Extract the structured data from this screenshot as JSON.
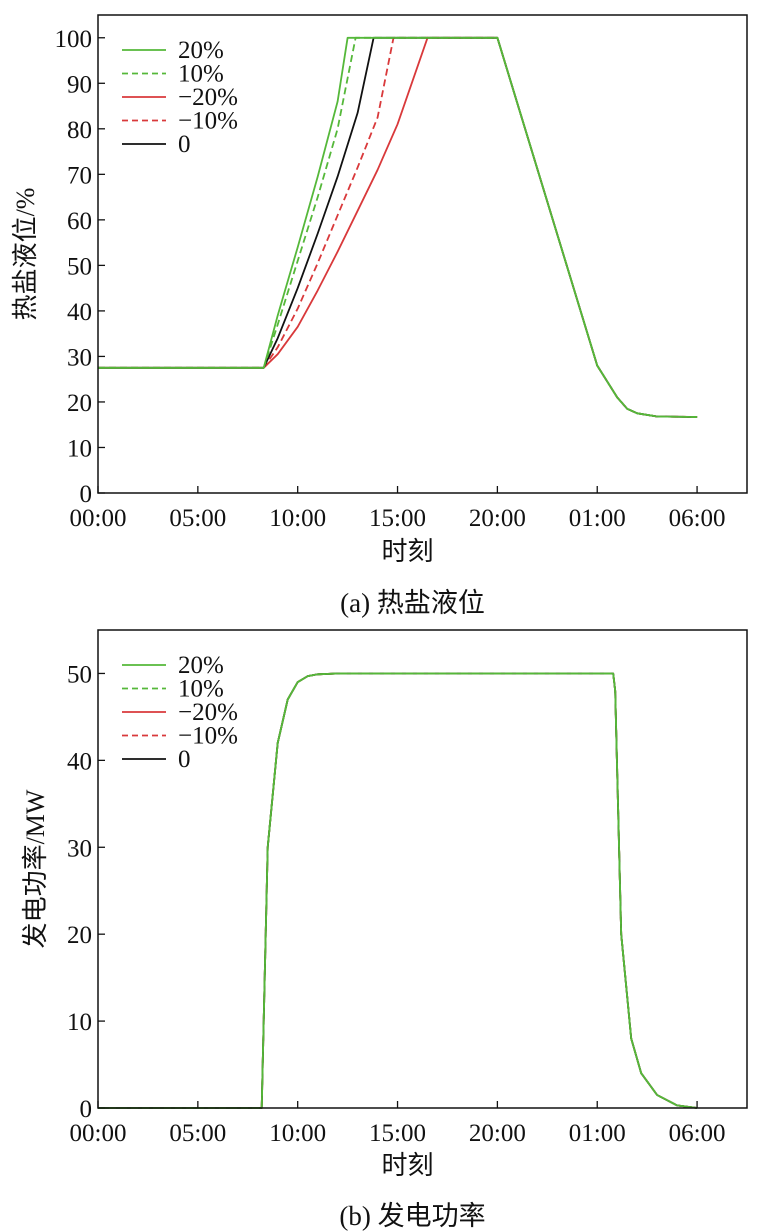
{
  "colors": {
    "green": "#55b83a",
    "red": "#d9393b",
    "black": "#111111",
    "axis": "#111111"
  },
  "legend": [
    {
      "label": "20%",
      "color": "green",
      "dash": false
    },
    {
      "label": "10%",
      "color": "green",
      "dash": true
    },
    {
      "label": "−20%",
      "color": "red",
      "dash": false
    },
    {
      "label": "−10%",
      "color": "red",
      "dash": true
    },
    {
      "label": "0",
      "color": "black",
      "dash": false
    }
  ],
  "chart_data": [
    {
      "type": "line",
      "caption": "(a) 热盐液位",
      "xlabel": "时刻",
      "ylabel": "热盐液位/%",
      "xticks": [
        "00:00",
        "05:00",
        "10:00",
        "15:00",
        "20:00",
        "01:00",
        "06:00"
      ],
      "xlim": [
        0,
        32.5
      ],
      "ylim": [
        0,
        105
      ],
      "yticks": [
        0,
        10,
        20,
        30,
        40,
        50,
        60,
        70,
        80,
        90,
        100
      ],
      "x_unit": "hours from 00:00",
      "series": [
        {
          "name": "−20%",
          "x": [
            0,
            8.3,
            9,
            10,
            11,
            12,
            13,
            14,
            15,
            16.5,
            20,
            25,
            26,
            26.5,
            27,
            28,
            30
          ],
          "y": [
            27.5,
            27.5,
            30.5,
            36.5,
            44.5,
            53,
            62,
            71,
            81,
            100,
            100,
            28,
            21,
            18.5,
            17.5,
            16.8,
            16.7
          ]
        },
        {
          "name": "−10%",
          "x": [
            0,
            8.3,
            9,
            10,
            11,
            12,
            13,
            14,
            14.8,
            20,
            25,
            26,
            26.5,
            27,
            28,
            30
          ],
          "y": [
            27.5,
            27.5,
            32,
            40.5,
            50.5,
            61,
            71.5,
            82.5,
            100,
            100,
            28,
            21,
            18.5,
            17.5,
            16.8,
            16.7
          ]
        },
        {
          "name": "0",
          "x": [
            0,
            8.3,
            9,
            10,
            11,
            12,
            13,
            13.8,
            20,
            25,
            26,
            26.5,
            27,
            28,
            30
          ],
          "y": [
            27.5,
            27.5,
            34,
            45,
            57,
            69.5,
            83.5,
            100,
            100,
            28,
            21,
            18.5,
            17.5,
            16.8,
            16.7
          ]
        },
        {
          "name": "10%",
          "x": [
            0,
            8.3,
            9,
            10,
            11,
            12,
            12.9,
            20,
            25,
            26,
            26.5,
            27,
            28,
            30
          ],
          "y": [
            27.5,
            27.5,
            37,
            51,
            65,
            80,
            100,
            100,
            28,
            21,
            18.5,
            17.5,
            16.8,
            16.7
          ]
        },
        {
          "name": "20%",
          "x": [
            0,
            8.3,
            9,
            10,
            11,
            12,
            12.5,
            20,
            25,
            26,
            26.5,
            27,
            28,
            30
          ],
          "y": [
            27.5,
            27.5,
            39,
            54,
            69.5,
            86,
            100,
            100,
            28,
            21,
            18.5,
            17.5,
            16.8,
            16.7
          ]
        }
      ]
    },
    {
      "type": "line",
      "caption": "(b) 发电功率",
      "xlabel": "时刻",
      "ylabel": "发电功率/MW",
      "xticks": [
        "00:00",
        "05:00",
        "10:00",
        "15:00",
        "20:00",
        "01:00",
        "06:00"
      ],
      "xlim": [
        0,
        32.5
      ],
      "ylim": [
        0,
        55
      ],
      "yticks": [
        0,
        10,
        20,
        30,
        40,
        50
      ],
      "x_unit": "hours from 00:00",
      "series": [
        {
          "name": "−20%",
          "x": [
            0,
            8.2,
            8.3,
            8.5,
            9,
            9.5,
            10,
            10.5,
            11,
            12,
            25.8,
            25.9,
            26.2,
            26.7,
            27.2,
            28,
            29,
            30
          ],
          "y": [
            0,
            0,
            10,
            30,
            42,
            47,
            49,
            49.7,
            49.9,
            50,
            50,
            48,
            20,
            8,
            4,
            1.5,
            0.3,
            0
          ]
        },
        {
          "name": "−10%",
          "x": [
            0,
            8.2,
            8.3,
            8.5,
            9,
            9.5,
            10,
            10.5,
            11,
            12,
            25.8,
            25.9,
            26.2,
            26.7,
            27.2,
            28,
            29,
            30
          ],
          "y": [
            0,
            0,
            10,
            30,
            42,
            47,
            49,
            49.7,
            49.9,
            50,
            50,
            48,
            20,
            8,
            4,
            1.5,
            0.3,
            0
          ]
        },
        {
          "name": "0",
          "x": [
            0,
            8.2,
            8.3,
            8.5,
            9,
            9.5,
            10,
            10.5,
            11,
            12,
            25.8,
            25.9,
            26.2,
            26.7,
            27.2,
            28,
            29,
            30
          ],
          "y": [
            0,
            0,
            10,
            30,
            42,
            47,
            49,
            49.7,
            49.9,
            50,
            50,
            48,
            20,
            8,
            4,
            1.5,
            0.3,
            0
          ]
        },
        {
          "name": "10%",
          "x": [
            0,
            8.2,
            8.3,
            8.5,
            9,
            9.5,
            10,
            10.5,
            11,
            12,
            25.8,
            25.9,
            26.2,
            26.7,
            27.2,
            28,
            29,
            30
          ],
          "y": [
            0,
            0,
            10,
            30,
            42,
            47,
            49,
            49.7,
            49.9,
            50,
            50,
            48,
            20,
            8,
            4,
            1.5,
            0.3,
            0
          ]
        },
        {
          "name": "20%",
          "x": [
            0,
            8.2,
            8.3,
            8.5,
            9,
            9.5,
            10,
            10.5,
            11,
            12,
            25.8,
            25.9,
            26.2,
            26.7,
            27.2,
            28,
            29,
            30
          ],
          "y": [
            0,
            0,
            10,
            30,
            42,
            47,
            49,
            49.7,
            49.9,
            50,
            50,
            48,
            20,
            8,
            4,
            1.5,
            0.3,
            0
          ]
        }
      ]
    }
  ]
}
